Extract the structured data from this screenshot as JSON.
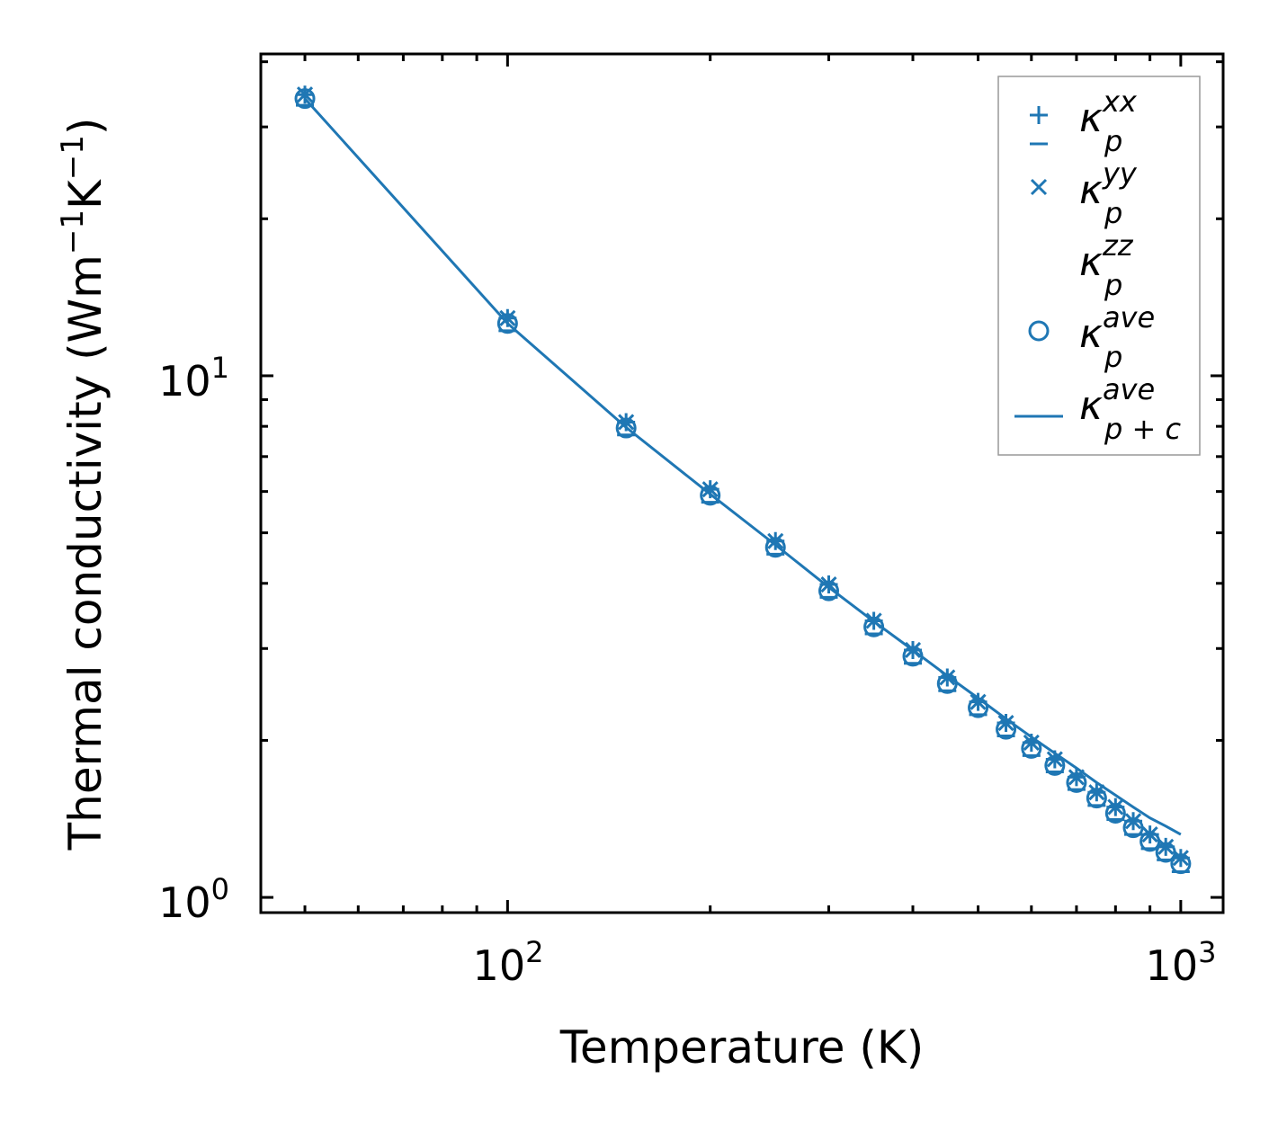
{
  "chart_data": {
    "type": "scatter",
    "xlabel": "Temperature (K)",
    "ylabel": "Thermal conductivity (Wm⁻¹K⁻¹)",
    "ylabel_parts": {
      "a": "Thermal conductivity (Wm",
      "b": "−1",
      "c": "K",
      "d": "−1",
      "e": ")"
    },
    "xscale": "log",
    "yscale": "log",
    "xlim": [
      43,
      1156
    ],
    "ylim": [
      0.935,
      41.4
    ],
    "xticks": [
      {
        "base": "10",
        "exp": "2",
        "value": 100
      },
      {
        "base": "10",
        "exp": "3",
        "value": 1000
      }
    ],
    "yticks": [
      {
        "base": "10",
        "exp": "0",
        "value": 1
      },
      {
        "base": "10",
        "exp": "1",
        "value": 10
      }
    ],
    "color": "#1f77b4",
    "legend_position": "upper-right",
    "x": [
      50,
      100,
      150,
      200,
      250,
      300,
      350,
      400,
      450,
      500,
      550,
      600,
      650,
      700,
      750,
      800,
      850,
      900,
      950,
      1000
    ],
    "series": [
      {
        "name": "kappa_p^xx",
        "label": {
          "main": "κ",
          "sub": "p",
          "sup": "xx"
        },
        "marker": "plus",
        "values": [
          34.6,
          12.9,
          8.15,
          6.06,
          4.82,
          3.98,
          3.39,
          2.98,
          2.64,
          2.37,
          2.16,
          1.98,
          1.84,
          1.7,
          1.59,
          1.49,
          1.4,
          1.32,
          1.25,
          1.19
        ]
      },
      {
        "name": "kappa_p^yy",
        "label": {
          "main": "κ",
          "sub": "p",
          "sup": "yy"
        },
        "marker": "x",
        "values": [
          34.6,
          12.9,
          8.15,
          6.06,
          4.82,
          3.98,
          3.39,
          2.98,
          2.64,
          2.37,
          2.16,
          1.98,
          1.84,
          1.7,
          1.59,
          1.49,
          1.4,
          1.32,
          1.25,
          1.19
        ]
      },
      {
        "name": "kappa_p^zz",
        "label": {
          "main": "κ",
          "sub": "p",
          "sup": "zz"
        },
        "marker": "hline",
        "values": [
          33.0,
          12.2,
          7.7,
          5.72,
          4.55,
          3.76,
          3.2,
          2.81,
          2.49,
          2.24,
          2.04,
          1.87,
          1.74,
          1.61,
          1.5,
          1.41,
          1.32,
          1.24,
          1.18,
          1.12
        ]
      },
      {
        "name": "kappa_p^ave",
        "label": {
          "main": "κ",
          "sub": "p",
          "sup": "ave"
        },
        "marker": "circle",
        "values": [
          34.0,
          12.6,
          7.94,
          5.9,
          4.69,
          3.87,
          3.3,
          2.9,
          2.57,
          2.31,
          2.1,
          1.93,
          1.79,
          1.66,
          1.55,
          1.45,
          1.36,
          1.28,
          1.22,
          1.16
        ]
      },
      {
        "name": "kappa_p+c^ave",
        "label": {
          "main": "κ",
          "sub": "p + c",
          "sup": "ave"
        },
        "marker": "line",
        "values": [
          34.0,
          12.6,
          7.96,
          5.93,
          4.74,
          3.93,
          3.38,
          2.98,
          2.66,
          2.41,
          2.2,
          2.03,
          1.89,
          1.77,
          1.66,
          1.57,
          1.49,
          1.42,
          1.37,
          1.32
        ]
      }
    ]
  }
}
